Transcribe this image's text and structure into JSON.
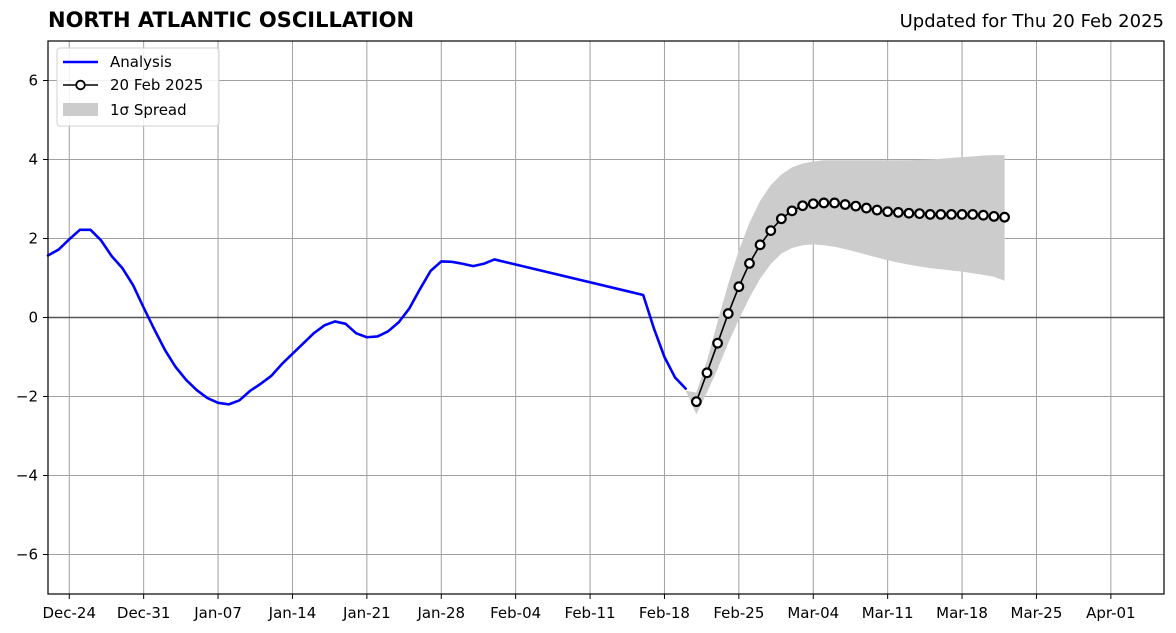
{
  "chart_data": {
    "type": "line",
    "title": "NORTH ATLANTIC OSCILLATION",
    "subtitle": "Updated for Thu 20 Feb 2025",
    "xlabel": "",
    "ylabel": "",
    "xlim": [
      "2024-12-22",
      "2025-04-06"
    ],
    "ylim": [
      -7,
      7
    ],
    "grid": true,
    "legend_position": "top-left",
    "x_ticks": [
      "2024-12-24",
      "2024-12-31",
      "2025-01-07",
      "2025-01-14",
      "2025-01-21",
      "2025-01-28",
      "2025-02-04",
      "2025-02-11",
      "2025-02-18",
      "2025-02-25",
      "2025-03-04",
      "2025-03-11",
      "2025-03-18",
      "2025-03-25",
      "2025-04-01"
    ],
    "x_tick_labels": [
      "Dec-24",
      "Dec-31",
      "Jan-07",
      "Jan-14",
      "Jan-21",
      "Jan-28",
      "Feb-04",
      "Feb-11",
      "Feb-18",
      "Feb-25",
      "Mar-04",
      "Mar-11",
      "Mar-18",
      "Mar-25",
      "Apr-01"
    ],
    "y_ticks": [
      -6,
      -4,
      -2,
      0,
      2,
      4,
      6
    ],
    "y_tick_labels": [
      "−6",
      "−4",
      "−2",
      "0",
      "2",
      "4",
      "6"
    ],
    "series": [
      {
        "name": "Analysis",
        "color": "#0000ff",
        "style": "line",
        "x": [
          "2024-12-22",
          "2024-12-23",
          "2024-12-24",
          "2024-12-25",
          "2024-12-26",
          "2024-12-27",
          "2024-12-28",
          "2024-12-29",
          "2024-12-30",
          "2024-12-31",
          "2025-01-01",
          "2025-01-02",
          "2025-01-03",
          "2025-01-04",
          "2025-01-05",
          "2025-01-06",
          "2025-01-07",
          "2025-01-08",
          "2025-01-09",
          "2025-01-10",
          "2025-01-11",
          "2025-01-12",
          "2025-01-13",
          "2025-01-14",
          "2025-01-15",
          "2025-01-16",
          "2025-01-17",
          "2025-01-18",
          "2025-01-19",
          "2025-01-20",
          "2025-01-21",
          "2025-01-22",
          "2025-01-23",
          "2025-01-24",
          "2025-01-25",
          "2025-01-26",
          "2025-01-27",
          "2025-01-28",
          "2025-01-29",
          "2025-01-30",
          "2025-01-31",
          "2025-02-01",
          "2025-02-02",
          "2025-02-16",
          "2025-02-17",
          "2025-02-18",
          "2025-02-19",
          "2025-02-20"
        ],
        "y": [
          1.57,
          1.72,
          1.98,
          2.22,
          2.22,
          1.95,
          1.55,
          1.25,
          0.82,
          0.25,
          -0.3,
          -0.82,
          -1.25,
          -1.58,
          -1.84,
          -2.04,
          -2.16,
          -2.2,
          -2.1,
          -1.86,
          -1.68,
          -1.48,
          -1.18,
          -0.92,
          -0.66,
          -0.4,
          -0.2,
          -0.1,
          -0.16,
          -0.4,
          -0.5,
          -0.48,
          -0.35,
          -0.12,
          0.23,
          0.72,
          1.18,
          1.42,
          1.41,
          1.36,
          1.3,
          1.36,
          1.47,
          0.57,
          -0.27,
          -1.0,
          -1.52,
          -1.8
        ]
      },
      {
        "name": "20 Feb 2025",
        "color": "#000000",
        "style": "line-markers",
        "x": [
          "2025-02-21",
          "2025-02-22",
          "2025-02-23",
          "2025-02-24",
          "2025-02-25",
          "2025-02-26",
          "2025-02-27",
          "2025-02-28",
          "2025-03-01",
          "2025-03-02",
          "2025-03-03",
          "2025-03-04",
          "2025-03-05",
          "2025-03-06",
          "2025-03-07",
          "2025-03-08",
          "2025-03-09",
          "2025-03-10",
          "2025-03-11",
          "2025-03-12",
          "2025-03-13",
          "2025-03-14",
          "2025-03-15",
          "2025-03-16",
          "2025-03-17",
          "2025-03-18",
          "2025-03-19",
          "2025-03-20",
          "2025-03-21",
          "2025-03-22"
        ],
        "y": [
          -2.13,
          -1.4,
          -0.65,
          0.1,
          0.78,
          1.37,
          1.84,
          2.2,
          2.5,
          2.7,
          2.83,
          2.88,
          2.9,
          2.9,
          2.86,
          2.82,
          2.77,
          2.72,
          2.68,
          2.66,
          2.64,
          2.63,
          2.61,
          2.61,
          2.61,
          2.61,
          2.61,
          2.59,
          2.56,
          2.54
        ]
      }
    ],
    "spread": {
      "name": "1σ Spread",
      "color": "#cccccc",
      "x": [
        "2025-02-20",
        "2025-02-21",
        "2025-02-22",
        "2025-02-23",
        "2025-02-24",
        "2025-02-25",
        "2025-02-26",
        "2025-02-27",
        "2025-02-28",
        "2025-03-01",
        "2025-03-02",
        "2025-03-03",
        "2025-03-04",
        "2025-03-05",
        "2025-03-06",
        "2025-03-07",
        "2025-03-08",
        "2025-03-09",
        "2025-03-10",
        "2025-03-11",
        "2025-03-12",
        "2025-03-13",
        "2025-03-14",
        "2025-03-15",
        "2025-03-16",
        "2025-03-17",
        "2025-03-18",
        "2025-03-19",
        "2025-03-20",
        "2025-03-21",
        "2025-03-22"
      ],
      "lower": [
        -1.85,
        -2.45,
        -1.9,
        -1.3,
        -0.65,
        -0.05,
        0.5,
        0.98,
        1.35,
        1.62,
        1.76,
        1.83,
        1.85,
        1.83,
        1.79,
        1.73,
        1.66,
        1.59,
        1.52,
        1.45,
        1.39,
        1.34,
        1.29,
        1.25,
        1.22,
        1.19,
        1.16,
        1.12,
        1.08,
        1.03,
        0.93
      ],
      "upper": [
        -1.85,
        -1.9,
        -1.1,
        -0.1,
        0.85,
        1.7,
        2.4,
        2.95,
        3.35,
        3.62,
        3.8,
        3.9,
        3.95,
        3.98,
        3.98,
        3.98,
        3.98,
        3.98,
        3.98,
        3.98,
        3.98,
        3.98,
        3.99,
        4.0,
        4.02,
        4.04,
        4.06,
        4.08,
        4.1,
        4.11,
        4.11
      ]
    },
    "legend": [
      {
        "label": "Analysis"
      },
      {
        "label": "20 Feb 2025"
      },
      {
        "label": "1σ Spread"
      }
    ]
  }
}
